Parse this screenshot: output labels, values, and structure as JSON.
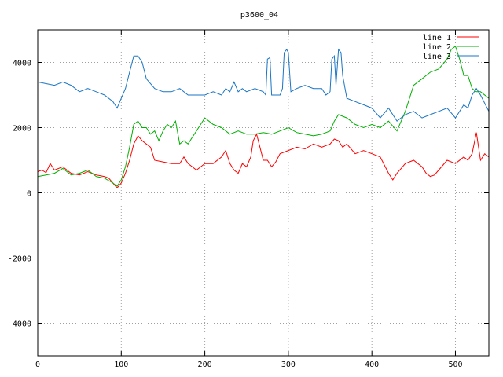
{
  "chart_data": {
    "type": "line",
    "title": "p3600_04",
    "xlabel": "",
    "ylabel": "",
    "xlim": [
      0,
      540
    ],
    "ylim": [
      -5000,
      5000
    ],
    "xticks": [
      0,
      100,
      200,
      300,
      400,
      500
    ],
    "yticks": [
      -4000,
      -2000,
      0,
      2000,
      4000
    ],
    "grid": true,
    "legend_position": "top-right",
    "series": [
      {
        "name": "line 1",
        "color": "#ff0000",
        "points": [
          [
            0,
            650
          ],
          [
            5,
            700
          ],
          [
            10,
            620
          ],
          [
            15,
            900
          ],
          [
            20,
            700
          ],
          [
            30,
            800
          ],
          [
            40,
            600
          ],
          [
            50,
            550
          ],
          [
            60,
            650
          ],
          [
            65,
            600
          ],
          [
            70,
            550
          ],
          [
            80,
            500
          ],
          [
            85,
            450
          ],
          [
            90,
            300
          ],
          [
            95,
            150
          ],
          [
            100,
            300
          ],
          [
            105,
            600
          ],
          [
            110,
            1000
          ],
          [
            115,
            1500
          ],
          [
            120,
            1750
          ],
          [
            125,
            1600
          ],
          [
            130,
            1500
          ],
          [
            135,
            1400
          ],
          [
            140,
            1000
          ],
          [
            150,
            950
          ],
          [
            160,
            900
          ],
          [
            170,
            900
          ],
          [
            175,
            1100
          ],
          [
            180,
            900
          ],
          [
            190,
            700
          ],
          [
            200,
            900
          ],
          [
            210,
            900
          ],
          [
            220,
            1100
          ],
          [
            225,
            1300
          ],
          [
            230,
            900
          ],
          [
            235,
            700
          ],
          [
            240,
            600
          ],
          [
            245,
            900
          ],
          [
            250,
            800
          ],
          [
            255,
            1100
          ],
          [
            258,
            1600
          ],
          [
            262,
            1800
          ],
          [
            265,
            1500
          ],
          [
            270,
            1000
          ],
          [
            275,
            1000
          ],
          [
            280,
            800
          ],
          [
            285,
            950
          ],
          [
            290,
            1200
          ],
          [
            300,
            1300
          ],
          [
            310,
            1400
          ],
          [
            320,
            1350
          ],
          [
            330,
            1500
          ],
          [
            340,
            1400
          ],
          [
            350,
            1500
          ],
          [
            355,
            1650
          ],
          [
            360,
            1600
          ],
          [
            365,
            1400
          ],
          [
            370,
            1500
          ],
          [
            380,
            1200
          ],
          [
            390,
            1300
          ],
          [
            400,
            1200
          ],
          [
            410,
            1100
          ],
          [
            420,
            600
          ],
          [
            425,
            400
          ],
          [
            430,
            600
          ],
          [
            440,
            900
          ],
          [
            450,
            1000
          ],
          [
            460,
            800
          ],
          [
            465,
            600
          ],
          [
            470,
            500
          ],
          [
            475,
            550
          ],
          [
            480,
            700
          ],
          [
            490,
            1000
          ],
          [
            500,
            900
          ],
          [
            510,
            1100
          ],
          [
            515,
            1000
          ],
          [
            520,
            1200
          ],
          [
            525,
            1850
          ],
          [
            530,
            1000
          ],
          [
            535,
            1200
          ],
          [
            540,
            1100
          ]
        ]
      },
      {
        "name": "line 2",
        "color": "#00b000",
        "points": [
          [
            0,
            500
          ],
          [
            10,
            550
          ],
          [
            20,
            600
          ],
          [
            30,
            750
          ],
          [
            40,
            550
          ],
          [
            50,
            600
          ],
          [
            60,
            700
          ],
          [
            70,
            500
          ],
          [
            80,
            450
          ],
          [
            90,
            300
          ],
          [
            95,
            200
          ],
          [
            100,
            400
          ],
          [
            105,
            800
          ],
          [
            110,
            1400
          ],
          [
            115,
            2100
          ],
          [
            120,
            2200
          ],
          [
            125,
            2000
          ],
          [
            130,
            2000
          ],
          [
            135,
            1800
          ],
          [
            140,
            1900
          ],
          [
            145,
            1600
          ],
          [
            150,
            1900
          ],
          [
            155,
            2100
          ],
          [
            160,
            2000
          ],
          [
            165,
            2200
          ],
          [
            170,
            1500
          ],
          [
            175,
            1600
          ],
          [
            180,
            1500
          ],
          [
            185,
            1700
          ],
          [
            190,
            1900
          ],
          [
            200,
            2300
          ],
          [
            210,
            2100
          ],
          [
            220,
            2000
          ],
          [
            230,
            1800
          ],
          [
            240,
            1900
          ],
          [
            250,
            1800
          ],
          [
            260,
            1800
          ],
          [
            270,
            1850
          ],
          [
            280,
            1800
          ],
          [
            290,
            1900
          ],
          [
            300,
            2000
          ],
          [
            310,
            1850
          ],
          [
            320,
            1800
          ],
          [
            330,
            1750
          ],
          [
            340,
            1800
          ],
          [
            350,
            1900
          ],
          [
            355,
            2200
          ],
          [
            360,
            2400
          ],
          [
            370,
            2300
          ],
          [
            380,
            2100
          ],
          [
            390,
            2000
          ],
          [
            400,
            2100
          ],
          [
            410,
            2000
          ],
          [
            420,
            2200
          ],
          [
            430,
            1900
          ],
          [
            440,
            2500
          ],
          [
            450,
            3300
          ],
          [
            460,
            3500
          ],
          [
            470,
            3700
          ],
          [
            480,
            3800
          ],
          [
            490,
            4100
          ],
          [
            495,
            4400
          ],
          [
            500,
            4500
          ],
          [
            505,
            4100
          ],
          [
            510,
            3600
          ],
          [
            515,
            3600
          ],
          [
            520,
            3200
          ],
          [
            525,
            3100
          ],
          [
            530,
            3100
          ],
          [
            540,
            2900
          ]
        ]
      },
      {
        "name": "line 3",
        "color": "#1a75c4",
        "points": [
          [
            0,
            3400
          ],
          [
            10,
            3350
          ],
          [
            20,
            3300
          ],
          [
            30,
            3400
          ],
          [
            40,
            3300
          ],
          [
            50,
            3100
          ],
          [
            60,
            3200
          ],
          [
            70,
            3100
          ],
          [
            80,
            3000
          ],
          [
            90,
            2800
          ],
          [
            95,
            2600
          ],
          [
            100,
            2900
          ],
          [
            105,
            3200
          ],
          [
            110,
            3700
          ],
          [
            115,
            4200
          ],
          [
            120,
            4200
          ],
          [
            125,
            4000
          ],
          [
            130,
            3500
          ],
          [
            140,
            3200
          ],
          [
            150,
            3100
          ],
          [
            160,
            3100
          ],
          [
            170,
            3200
          ],
          [
            180,
            3000
          ],
          [
            190,
            3000
          ],
          [
            200,
            3000
          ],
          [
            210,
            3100
          ],
          [
            220,
            3000
          ],
          [
            225,
            3200
          ],
          [
            230,
            3100
          ],
          [
            235,
            3400
          ],
          [
            240,
            3100
          ],
          [
            245,
            3200
          ],
          [
            250,
            3100
          ],
          [
            260,
            3200
          ],
          [
            270,
            3100
          ],
          [
            273,
            3000
          ],
          [
            275,
            4100
          ],
          [
            278,
            4150
          ],
          [
            280,
            3000
          ],
          [
            290,
            3000
          ],
          [
            293,
            3200
          ],
          [
            295,
            4300
          ],
          [
            298,
            4400
          ],
          [
            300,
            4300
          ],
          [
            303,
            3100
          ],
          [
            310,
            3200
          ],
          [
            320,
            3300
          ],
          [
            330,
            3200
          ],
          [
            340,
            3200
          ],
          [
            345,
            3000
          ],
          [
            350,
            3100
          ],
          [
            352,
            4100
          ],
          [
            355,
            4200
          ],
          [
            357,
            3300
          ],
          [
            360,
            4400
          ],
          [
            363,
            4300
          ],
          [
            365,
            3600
          ],
          [
            370,
            2900
          ],
          [
            380,
            2800
          ],
          [
            390,
            2700
          ],
          [
            400,
            2600
          ],
          [
            410,
            2300
          ],
          [
            420,
            2600
          ],
          [
            430,
            2200
          ],
          [
            440,
            2400
          ],
          [
            450,
            2500
          ],
          [
            460,
            2300
          ],
          [
            470,
            2400
          ],
          [
            480,
            2500
          ],
          [
            490,
            2600
          ],
          [
            500,
            2300
          ],
          [
            510,
            2700
          ],
          [
            515,
            2600
          ],
          [
            520,
            3000
          ],
          [
            525,
            3200
          ],
          [
            530,
            3000
          ],
          [
            540,
            2500
          ]
        ]
      }
    ]
  }
}
